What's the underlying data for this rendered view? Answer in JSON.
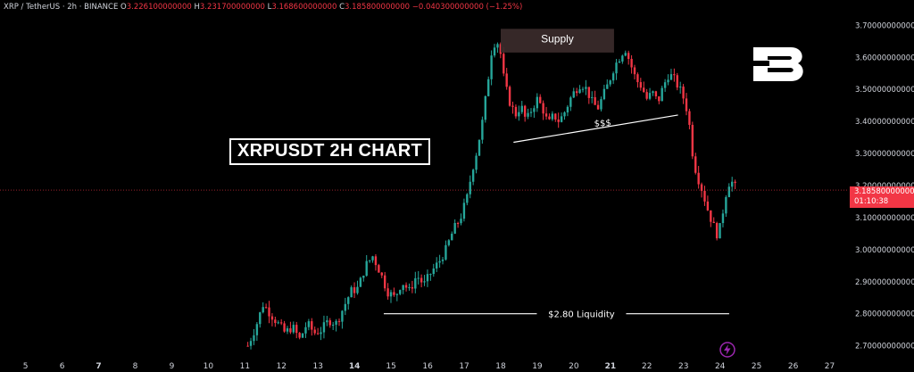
{
  "header": {
    "symbol": "XRP / TetherUS · 2h · BINANCE",
    "open_label": "O",
    "open": "3.226100000000",
    "high_label": "H",
    "high": "3.231700000000",
    "low_label": "L",
    "low": "3.168600000000",
    "close_label": "C",
    "close": "3.185800000000",
    "change": "−0.040300000000 (−1.25%)"
  },
  "title": "XRPUSDT 2H CHART",
  "annotations": {
    "supply": "Supply",
    "sss": "$$$",
    "liquidity": "$2.80 Liquidity"
  },
  "price_tag": {
    "price": "3.185800000000",
    "countdown": "01:10:38"
  },
  "colors": {
    "up": "#26a69a",
    "down": "#f23645",
    "background": "#000000",
    "grid_text": "#d1d4dc"
  },
  "chart_data": {
    "type": "candlestick",
    "y_tick_labels": [
      "3.700000000000",
      "3.600000000000",
      "3.500000000000",
      "3.400000000000",
      "3.300000000000",
      "3.200000000000",
      "3.100000000000",
      "3.000000000000",
      "2.900000000000",
      "2.800000000000",
      "2.700000000000"
    ],
    "y_ticks": [
      3.7,
      3.6,
      3.5,
      3.4,
      3.3,
      3.2,
      3.1,
      3.0,
      2.9,
      2.8,
      2.7
    ],
    "ylim": [
      2.66,
      3.74
    ],
    "x_ticks": [
      "5",
      "6",
      "7",
      "8",
      "9",
      "10",
      "11",
      "12",
      "13",
      "14",
      "15",
      "16",
      "17",
      "18",
      "19",
      "20",
      "21",
      "22",
      "23",
      "24",
      "25",
      "26",
      "27"
    ],
    "x_bold_ticks": [
      "7",
      "14",
      "21"
    ],
    "xlim_days": [
      4.3,
      27.5
    ],
    "current_price": 3.1858,
    "supply_zone": {
      "from_day": 18.0,
      "to_day": 21.1,
      "bottom": 3.615,
      "top": 3.65
    },
    "sss_line": {
      "from": [
        18.35,
        3.335
      ],
      "to": [
        22.85,
        3.42
      ]
    },
    "liquidity_level": {
      "price": 2.8,
      "from_day": 14.8,
      "to_day": 24.25
    },
    "close_path": [
      [
        11.08,
        2.7
      ],
      [
        11.3,
        2.76
      ],
      [
        11.5,
        2.83
      ],
      [
        11.7,
        2.8
      ],
      [
        11.9,
        2.77
      ],
      [
        12.1,
        2.74
      ],
      [
        12.3,
        2.76
      ],
      [
        12.5,
        2.72
      ],
      [
        12.7,
        2.77
      ],
      [
        12.9,
        2.74
      ],
      [
        13.1,
        2.75
      ],
      [
        13.3,
        2.78
      ],
      [
        13.5,
        2.77
      ],
      [
        13.7,
        2.82
      ],
      [
        13.9,
        2.87
      ],
      [
        14.1,
        2.88
      ],
      [
        14.3,
        2.95
      ],
      [
        14.5,
        2.98
      ],
      [
        14.7,
        2.93
      ],
      [
        14.9,
        2.87
      ],
      [
        15.1,
        2.85
      ],
      [
        15.3,
        2.9
      ],
      [
        15.5,
        2.87
      ],
      [
        15.7,
        2.92
      ],
      [
        15.9,
        2.89
      ],
      [
        16.1,
        2.93
      ],
      [
        16.3,
        2.96
      ],
      [
        16.5,
        3.0
      ],
      [
        16.7,
        3.06
      ],
      [
        16.9,
        3.1
      ],
      [
        17.1,
        3.17
      ],
      [
        17.2,
        3.24
      ],
      [
        17.35,
        3.31
      ],
      [
        17.5,
        3.4
      ],
      [
        17.62,
        3.5
      ],
      [
        17.75,
        3.62
      ],
      [
        17.88,
        3.66
      ],
      [
        18.0,
        3.61
      ],
      [
        18.1,
        3.52
      ],
      [
        18.25,
        3.46
      ],
      [
        18.4,
        3.42
      ],
      [
        18.55,
        3.45
      ],
      [
        18.7,
        3.4
      ],
      [
        18.85,
        3.44
      ],
      [
        19.0,
        3.47
      ],
      [
        19.15,
        3.44
      ],
      [
        19.3,
        3.39
      ],
      [
        19.45,
        3.42
      ],
      [
        19.6,
        3.4
      ],
      [
        19.75,
        3.43
      ],
      [
        19.9,
        3.47
      ],
      [
        20.05,
        3.5
      ],
      [
        20.2,
        3.52
      ],
      [
        20.35,
        3.5
      ],
      [
        20.5,
        3.46
      ],
      [
        20.65,
        3.44
      ],
      [
        20.8,
        3.48
      ],
      [
        20.95,
        3.52
      ],
      [
        21.1,
        3.57
      ],
      [
        21.25,
        3.6
      ],
      [
        21.4,
        3.63
      ],
      [
        21.55,
        3.58
      ],
      [
        21.7,
        3.53
      ],
      [
        21.85,
        3.51
      ],
      [
        22.0,
        3.47
      ],
      [
        22.15,
        3.49
      ],
      [
        22.3,
        3.46
      ],
      [
        22.45,
        3.51
      ],
      [
        22.6,
        3.55
      ],
      [
        22.75,
        3.53
      ],
      [
        22.9,
        3.5
      ],
      [
        23.05,
        3.46
      ],
      [
        23.15,
        3.4
      ],
      [
        23.25,
        3.3
      ],
      [
        23.35,
        3.24
      ],
      [
        23.5,
        3.19
      ],
      [
        23.65,
        3.13
      ],
      [
        23.8,
        3.08
      ],
      [
        23.95,
        3.04
      ],
      [
        24.05,
        3.1
      ],
      [
        24.15,
        3.17
      ],
      [
        24.25,
        3.21
      ],
      [
        24.35,
        3.21
      ],
      [
        24.45,
        3.1858
      ]
    ]
  }
}
